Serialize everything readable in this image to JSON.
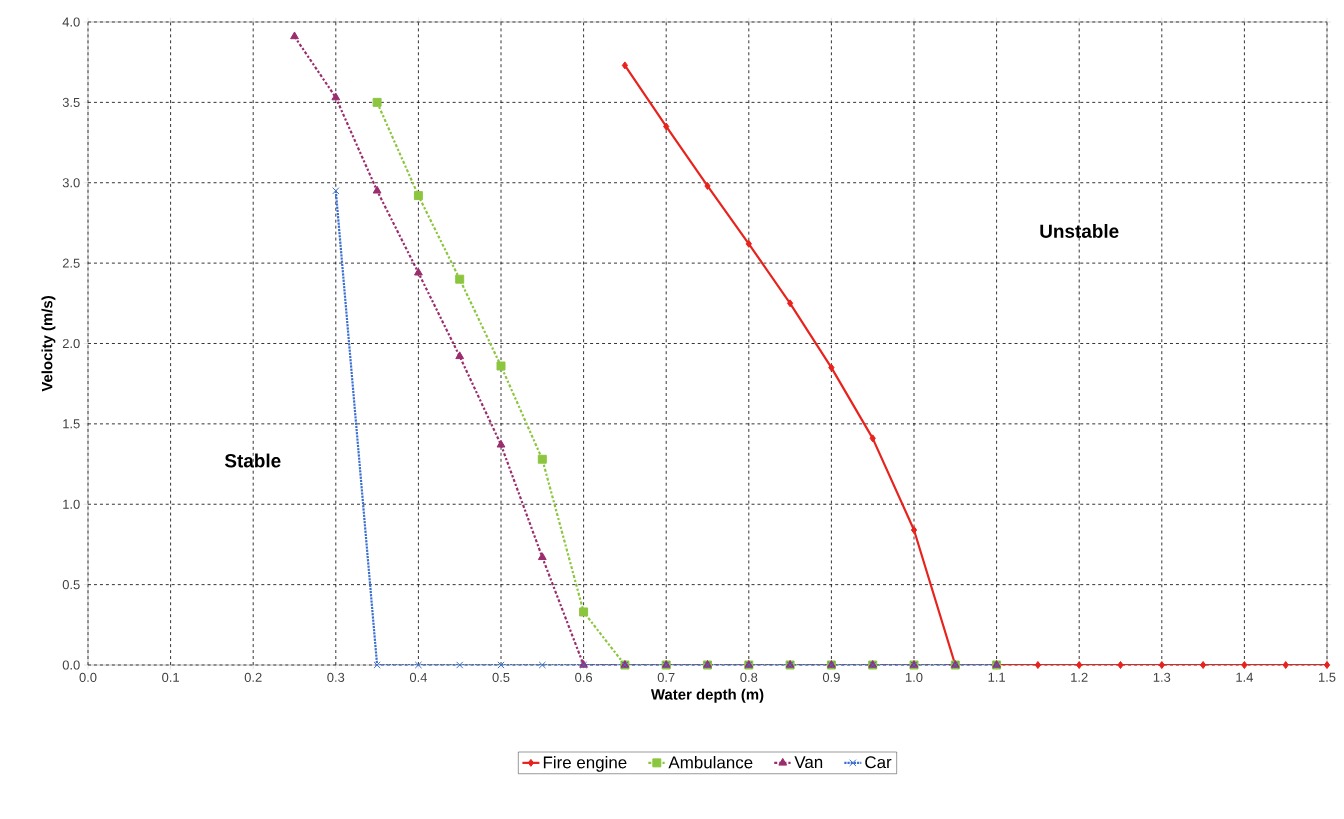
{
  "chart_data": {
    "type": "line",
    "xlabel": "Water depth (m)",
    "ylabel": "Velocity (m/s)",
    "xlim": [
      0,
      1.5
    ],
    "ylim": [
      0,
      4.0
    ],
    "xticks": [
      {
        "value": 0,
        "label": "0.0"
      },
      0.1,
      0.2,
      0.3,
      0.4,
      0.5,
      0.6,
      0.7,
      0.8,
      0.9,
      {
        "value": 1,
        "label": "1.0"
      },
      1.1,
      1.2,
      1.3,
      1.4,
      1.5
    ],
    "yticks": [
      {
        "value": 0,
        "label": "0.0"
      },
      0.5,
      {
        "value": 1,
        "label": "1.0"
      },
      1.5,
      {
        "value": 2,
        "label": "2.0"
      },
      2.5,
      {
        "value": 3,
        "label": "3.0"
      },
      3.5,
      {
        "value": 4,
        "label": "4.0"
      }
    ],
    "grid": true,
    "legend": "bottom",
    "annotations": [
      "Stable",
      "Unstable"
    ],
    "series": [
      {
        "name": "Fire engine",
        "color": "#e8221c",
        "marker": "diamond",
        "line_style": "solid",
        "x": [
          0.65,
          0.7,
          0.75,
          0.8,
          0.85,
          0.9,
          0.95,
          1.0,
          1.05,
          1.1,
          1.15,
          1.2,
          1.25,
          1.3,
          1.35,
          1.4,
          1.45,
          1.5
        ],
        "values": [
          3.73,
          3.35,
          2.98,
          2.62,
          2.25,
          1.85,
          1.41,
          0.84,
          0,
          0,
          0,
          0,
          0,
          0,
          0,
          0,
          0,
          0
        ]
      },
      {
        "name": "Ambulance",
        "color": "#8cc63f",
        "marker": "square",
        "line_style": "dashed",
        "x": [
          0.35,
          0.4,
          0.45,
          0.5,
          0.55,
          0.6,
          0.65,
          0.7,
          0.75,
          0.8,
          0.85,
          0.9,
          0.95,
          1.0,
          1.05,
          1.1
        ],
        "values": [
          3.5,
          2.92,
          2.4,
          1.86,
          1.28,
          0.33,
          0,
          0,
          0,
          0,
          0,
          0,
          0,
          0,
          0,
          0
        ]
      },
      {
        "name": "Van",
        "color": "#9b2d6e",
        "marker": "triangle",
        "line_style": "dashed",
        "x": [
          0.25,
          0.3,
          0.35,
          0.4,
          0.45,
          0.5,
          0.55,
          0.6,
          0.65,
          0.7,
          0.75,
          0.8,
          0.85,
          0.9,
          0.95,
          1.0,
          1.05,
          1.1
        ],
        "values": [
          3.91,
          3.53,
          2.95,
          2.44,
          1.92,
          1.37,
          0.67,
          0,
          0,
          0,
          0,
          0,
          0,
          0,
          0,
          0,
          0,
          0
        ]
      },
      {
        "name": "Car",
        "color": "#3b6fd0",
        "marker": "cross",
        "line_style": "dotted",
        "x": [
          0.3,
          0.35,
          0.4,
          0.45,
          0.5,
          0.55,
          0.6,
          0.65,
          0.7,
          0.75,
          0.8,
          0.85,
          0.9,
          0.95,
          1.0,
          1.05,
          1.1
        ],
        "values": [
          2.95,
          0,
          0,
          0,
          0,
          0,
          0,
          0,
          0,
          0,
          0,
          0,
          0,
          0,
          0,
          0,
          0
        ]
      }
    ]
  }
}
